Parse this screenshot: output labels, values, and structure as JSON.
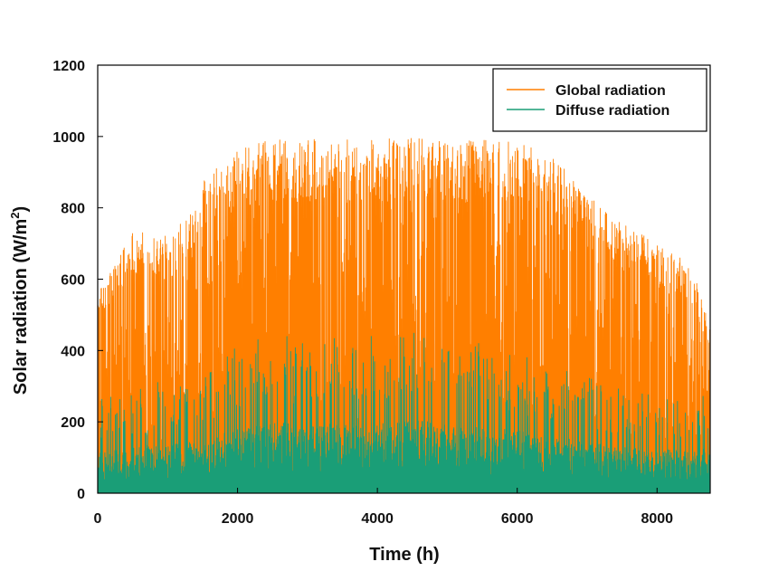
{
  "chart_data": {
    "type": "area",
    "xlabel": "Time (h)",
    "ylabel_main": "Solar radiation (W/m",
    "ylabel_sup": "2",
    "ylabel_close": ")",
    "xlim": [
      0,
      8760
    ],
    "ylim": [
      0,
      1200
    ],
    "xticks": [
      0,
      2000,
      4000,
      6000,
      8000
    ],
    "yticks": [
      0,
      200,
      400,
      600,
      800,
      1000,
      1200
    ],
    "legend_position": "top-right",
    "grid": false,
    "series": [
      {
        "name": "Global radiation",
        "color": "#FF7F00",
        "envelope_x": [
          0,
          500,
          1000,
          1500,
          2000,
          2500,
          3000,
          3500,
          4000,
          4500,
          5000,
          5500,
          6000,
          6500,
          7000,
          7500,
          8000,
          8500,
          8760
        ],
        "envelope_peak": [
          560,
          740,
          720,
          880,
          960,
          995,
          995,
          990,
          995,
          995,
          990,
          995,
          990,
          950,
          840,
          760,
          700,
          640,
          470
        ]
      },
      {
        "name": "Diffuse radiation",
        "color": "#1A9E77",
        "envelope_x": [
          0,
          500,
          1000,
          1500,
          2000,
          2500,
          3000,
          3500,
          4000,
          4500,
          5000,
          5500,
          6000,
          6500,
          7000,
          7500,
          8000,
          8500,
          8760
        ],
        "envelope_peak": [
          270,
          290,
          320,
          330,
          420,
          455,
          440,
          440,
          440,
          470,
          440,
          420,
          400,
          360,
          330,
          300,
          280,
          270,
          290
        ]
      }
    ]
  }
}
